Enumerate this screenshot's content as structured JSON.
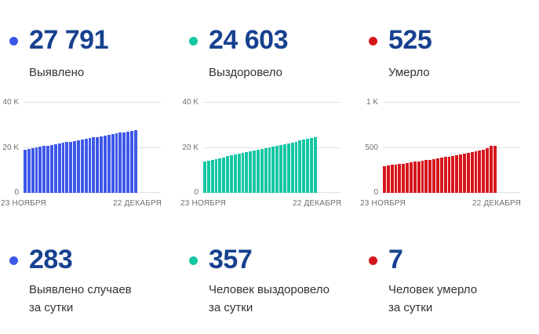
{
  "colors": {
    "accent_blue": "#3d58e8",
    "accent_teal": "#14c6a2",
    "accent_red": "#d6151b",
    "stat_number": "#17418f",
    "stat_label": "#333333",
    "axis_text": "#6f6f6f",
    "gridline": "#e0e0e0",
    "background": "#ffffff"
  },
  "panels": [
    {
      "total_value": "27 791",
      "total_label": "Выявлено",
      "daily_value": "283",
      "daily_label_lines": [
        "Выявлено случаев",
        "за сутки"
      ],
      "accent_color": "#3d58e8"
    },
    {
      "total_value": "24 603",
      "total_label": "Выздоровело",
      "daily_value": "357",
      "daily_label_lines": [
        "Человек выздоровело",
        "за сутки"
      ],
      "accent_color": "#14c6a2"
    },
    {
      "total_value": "525",
      "total_label": "Умерло",
      "daily_value": "7",
      "daily_label_lines": [
        "Человек умерло",
        "за сутки"
      ],
      "accent_color": "#d6151b"
    }
  ],
  "chart_data": [
    {
      "type": "bar",
      "title": "Выявлено",
      "bar_color": "#3d58e8",
      "ylim": [
        0,
        40000
      ],
      "y_tick_labels": [
        "0",
        "20 K",
        "40 K"
      ],
      "x_tick_labels": [
        "23 НОЯБРЯ",
        "22 ДЕКАБРЯ"
      ],
      "grid": true,
      "values": [
        19236,
        19531,
        19827,
        20122,
        20418,
        20713,
        21008,
        21304,
        21599,
        21895,
        22190,
        22486,
        22781,
        23076,
        23372,
        23667,
        23963,
        24258,
        24554,
        24849,
        25144,
        25440,
        25735,
        26031,
        26326,
        26622,
        26917,
        27212,
        27508,
        27791
      ]
    },
    {
      "type": "bar",
      "title": "Выздоровело",
      "bar_color": "#14c6a2",
      "ylim": [
        0,
        40000
      ],
      "y_tick_labels": [
        "0",
        "20 K",
        "40 K"
      ],
      "x_tick_labels": [
        "23 НОЯБРЯ",
        "22 ДЕКАБРЯ"
      ],
      "grid": true,
      "values": [
        14000,
        14366,
        14732,
        15098,
        15464,
        15830,
        16196,
        16562,
        16928,
        17294,
        17660,
        18026,
        18392,
        18758,
        19124,
        19490,
        19856,
        20222,
        20588,
        20954,
        21320,
        21686,
        22052,
        22418,
        22784,
        23150,
        23516,
        23882,
        24246,
        24603
      ]
    },
    {
      "type": "bar",
      "title": "Умерло",
      "bar_color": "#d6151b",
      "ylim": [
        0,
        1000
      ],
      "y_tick_labels": [
        "0",
        "500",
        "1 K"
      ],
      "x_tick_labels": [
        "23 НОЯБРЯ",
        "22 ДЕКАБРЯ"
      ],
      "grid": true,
      "values": [
        300,
        305,
        310,
        315,
        320,
        326,
        332,
        338,
        344,
        350,
        356,
        362,
        368,
        375,
        382,
        389,
        396,
        403,
        410,
        418,
        426,
        434,
        442,
        450,
        459,
        468,
        480,
        497,
        518,
        525
      ]
    }
  ]
}
